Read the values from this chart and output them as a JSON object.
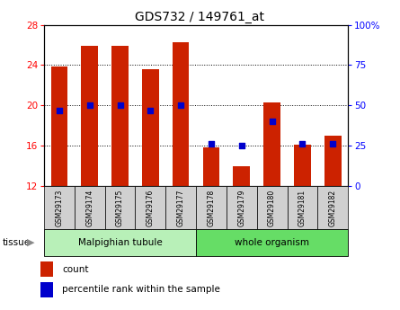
{
  "title": "GDS732 / 149761_at",
  "samples": [
    "GSM29173",
    "GSM29174",
    "GSM29175",
    "GSM29176",
    "GSM29177",
    "GSM29178",
    "GSM29179",
    "GSM29180",
    "GSM29181",
    "GSM29182"
  ],
  "counts": [
    23.9,
    25.9,
    25.9,
    23.6,
    26.3,
    15.8,
    14.0,
    20.3,
    16.1,
    17.0
  ],
  "percentiles": [
    47,
    50,
    50,
    47,
    50,
    26,
    25,
    40,
    26,
    26
  ],
  "bar_bottom": 12,
  "ylim_left": [
    12,
    28
  ],
  "ylim_right": [
    0,
    100
  ],
  "yticks_left": [
    12,
    16,
    20,
    24,
    28
  ],
  "yticks_right": [
    0,
    25,
    50,
    75,
    100
  ],
  "bar_color": "#cc2200",
  "dot_color": "#0000cc",
  "tissue_groups": {
    "Malpighian tubule": [
      0,
      1,
      2,
      3,
      4
    ],
    "whole organism": [
      5,
      6,
      7,
      8,
      9
    ]
  },
  "tissue_color_malpighian": "#b8f0b8",
  "tissue_color_whole": "#66dd66",
  "sample_box_color": "#d0d0d0",
  "bg_color": "#ffffff",
  "legend_count_color": "#cc2200",
  "legend_pct_color": "#0000cc"
}
